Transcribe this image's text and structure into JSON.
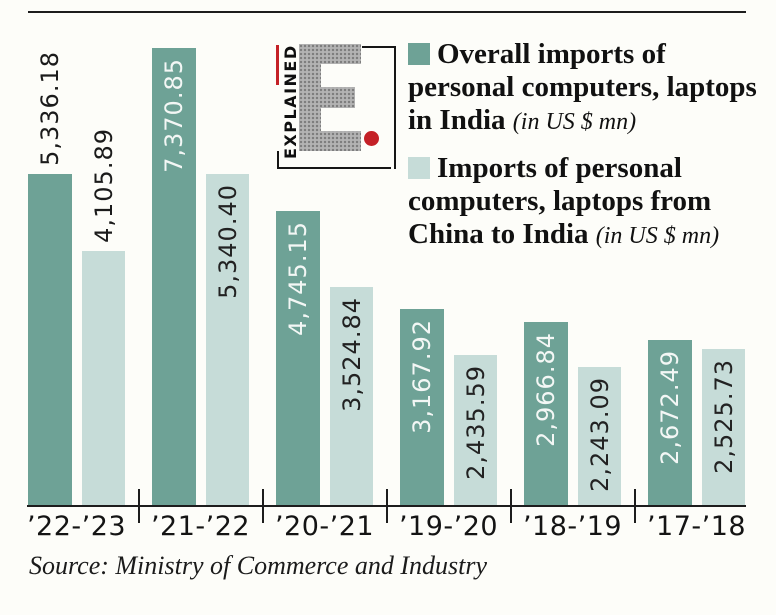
{
  "logo": {
    "vertical_text": "EXPLAINED",
    "letter": "E",
    "dot_color": "#c42127"
  },
  "legend": {
    "items": [
      {
        "swatch_color": "#6ea296",
        "label": "Overall imports of personal computers, laptops in India",
        "unit": "(in US $ mn)"
      },
      {
        "swatch_color": "#c6dcd8",
        "label": "Imports of personal computers, laptops from China to India",
        "unit": "(in US $ mn)"
      }
    ]
  },
  "source": "Source: Ministry of Commerce and Industry",
  "chart_data": {
    "type": "bar",
    "categories": [
      "’22-’23",
      "’21-’22",
      "’20-’21",
      "’19-’20",
      "’18-’19",
      "’17-’18"
    ],
    "series": [
      {
        "name": "Overall imports of personal computers, laptops in India (in US $ mn)",
        "color": "#6ea296",
        "values": [
          5336.18,
          7370.85,
          4745.15,
          3167.92,
          2966.84,
          2672.49
        ],
        "labels": [
          "5,336.18",
          "7,370.85",
          "4,745.15",
          "3,167.92",
          "2,966.84",
          "2,672.49"
        ],
        "label_placement": [
          "above",
          "inside",
          "inside",
          "inside",
          "inside",
          "inside"
        ],
        "label_color_inside": "#f3f7f5"
      },
      {
        "name": "Imports of personal computers, laptops from China to India (in US $ mn)",
        "color": "#c6dcd8",
        "values": [
          4105.89,
          5340.4,
          3524.84,
          2435.59,
          2243.09,
          2525.73
        ],
        "labels": [
          "4,105.89",
          "5,340.40",
          "3,524.84",
          "2,435.59",
          "2,243.09",
          "2,525.73"
        ],
        "label_placement": [
          "above",
          "inside",
          "inside",
          "inside",
          "inside",
          "inside"
        ],
        "label_color_inside": "#222222"
      }
    ],
    "ylim": [
      0,
      7370.85
    ],
    "grid": false,
    "legend_position": "top-right",
    "unit": "US $ mn"
  }
}
